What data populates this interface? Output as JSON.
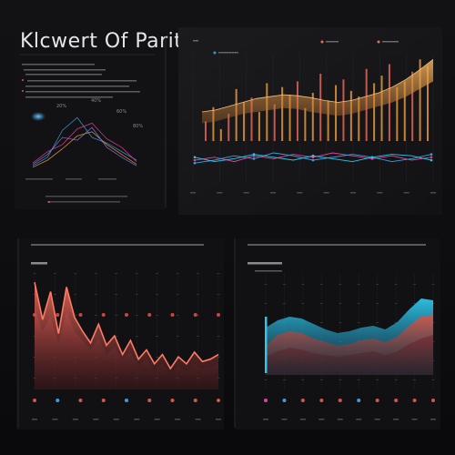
{
  "dashboard": {
    "title": "Klcwert Of Parith",
    "colors": {
      "background": "#0d0d0f",
      "panel": "#161618",
      "orange": "#f0a040",
      "salmon": "#f06a5a",
      "pink": "#e0449a",
      "blue": "#3a9fe0",
      "cyan": "#2ec6ea",
      "red_band": "#b8403e",
      "maroon": "#6a2a32"
    }
  },
  "chart_data": [
    {
      "name": "radial-lines",
      "type": "line",
      "annotations": [
        "20%",
        "40%",
        "60%",
        "80%"
      ],
      "series": [
        {
          "color": "#3a9fe0",
          "values": [
            10,
            22,
            60,
            78,
            50,
            42,
            30,
            18
          ]
        },
        {
          "color": "#e0449a",
          "values": [
            14,
            30,
            40,
            62,
            70,
            48,
            36,
            16
          ]
        },
        {
          "color": "#f0a040",
          "values": [
            8,
            18,
            34,
            52,
            58,
            40,
            26,
            12
          ]
        },
        {
          "color": "#8a7ae0",
          "values": [
            12,
            26,
            50,
            46,
            64,
            36,
            22,
            10
          ]
        }
      ]
    },
    {
      "name": "top-right-bars-area",
      "type": "bar",
      "ylim": [
        0,
        100
      ],
      "bars": [
        30,
        45,
        22,
        38,
        64,
        50,
        55,
        40,
        70,
        48,
        66,
        58,
        72,
        44,
        60,
        80,
        52,
        68,
        74,
        62,
        56,
        85,
        70,
        78,
        90,
        66,
        72,
        82,
        95,
        88
      ],
      "area_upper": [
        40,
        42,
        46,
        50,
        54,
        56,
        58,
        57,
        55,
        52,
        50,
        52,
        56,
        60,
        66,
        74,
        84,
        95
      ],
      "area_lower": [
        28,
        30,
        34,
        38,
        40,
        42,
        44,
        43,
        40,
        38,
        36,
        38,
        42,
        46,
        50,
        56,
        64,
        72
      ],
      "lines": [
        {
          "color": "#e0449a",
          "values": [
            30,
            34,
            28,
            36,
            32,
            38,
            34,
            40,
            36,
            32,
            36,
            30,
            34
          ]
        },
        {
          "color": "#3a9fe0",
          "values": [
            26,
            30,
            36,
            32,
            40,
            36,
            30,
            34,
            38,
            34,
            28,
            32,
            38
          ]
        },
        {
          "color": "#2ec6ea",
          "values": [
            34,
            28,
            32,
            38,
            34,
            30,
            36,
            32,
            28,
            34,
            38,
            36,
            30
          ]
        }
      ]
    },
    {
      "name": "bottom-left-area",
      "type": "area",
      "ylim": [
        0,
        100
      ],
      "series": [
        {
          "color": "#f06a5a",
          "values": [
            92,
            60,
            84,
            48,
            88,
            62,
            50,
            40,
            56,
            38,
            46,
            30,
            42,
            26,
            34,
            22,
            30,
            18,
            28,
            22,
            32,
            24,
            26,
            30
          ]
        },
        {
          "color": "#6a2a32",
          "values": [
            70,
            50,
            62,
            40,
            66,
            50,
            42,
            34,
            44,
            30,
            36,
            26,
            32,
            20,
            26,
            16,
            22,
            14,
            20,
            16,
            22,
            18,
            20,
            22
          ]
        }
      ],
      "dots": [
        40,
        40,
        40,
        40,
        40,
        40,
        40,
        40,
        40
      ]
    },
    {
      "name": "bottom-right-area",
      "type": "area",
      "ylim": [
        0,
        100
      ],
      "series": [
        {
          "color": "#2ec6ea",
          "values": [
            60,
            68,
            72,
            70,
            64,
            58,
            54,
            56,
            60,
            62,
            58,
            66,
            80,
            92,
            90
          ]
        },
        {
          "color": "#b8403e",
          "values": [
            40,
            52,
            56,
            54,
            48,
            44,
            40,
            42,
            46,
            48,
            44,
            50,
            62,
            72,
            74
          ]
        },
        {
          "color": "#6a2a32",
          "values": [
            28,
            34,
            38,
            36,
            32,
            30,
            28,
            30,
            32,
            34,
            30,
            34,
            42,
            48,
            52
          ]
        }
      ],
      "dots": [
        1,
        1,
        1,
        1,
        1,
        1,
        1,
        1,
        1,
        1
      ]
    }
  ]
}
